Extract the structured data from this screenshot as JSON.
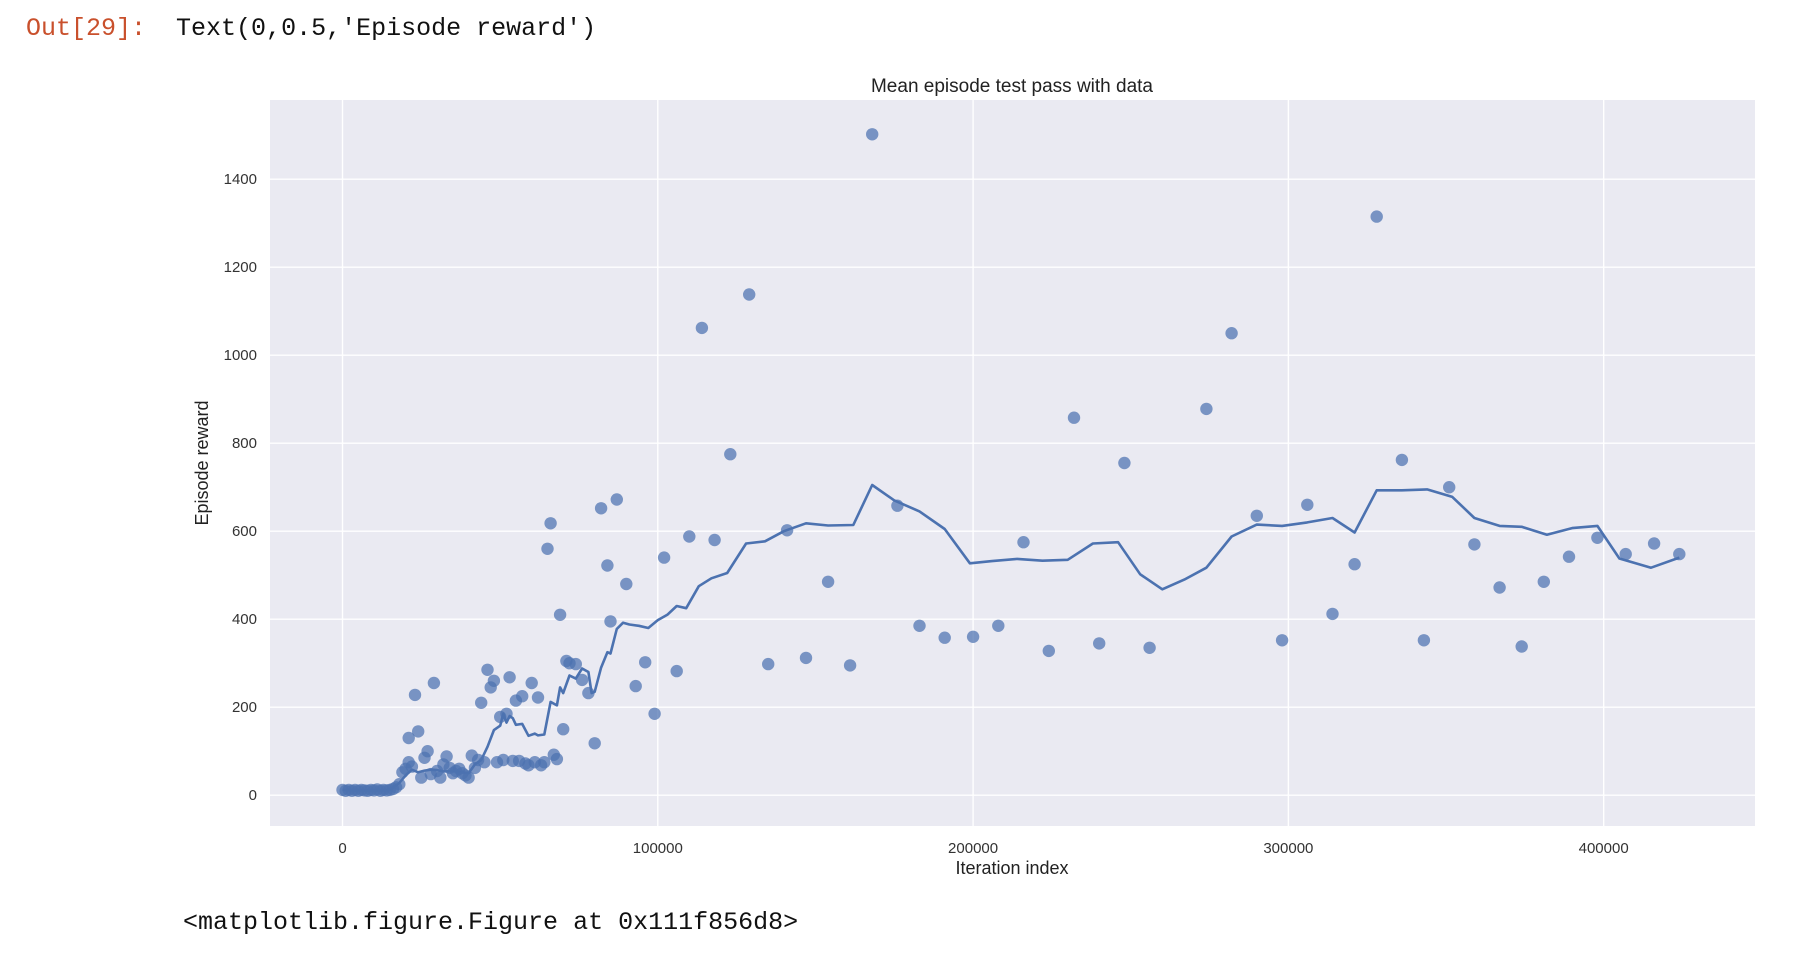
{
  "cell": {
    "prompt": "Out[29]:",
    "output_text": "Text(0,0.5,'Episode reward')",
    "figure_repr": "<matplotlib.figure.Figure at 0x111f856d8>"
  },
  "chart_data": {
    "type": "scatter",
    "title": "Mean episode test pass with data",
    "xlabel": "Iteration index",
    "ylabel": "Episode reward",
    "xlim": [
      -23000,
      448000
    ],
    "ylim": [
      -70,
      1580
    ],
    "xticks": [
      0,
      100000,
      200000,
      300000,
      400000
    ],
    "yticks": [
      0,
      200,
      400,
      600,
      800,
      1000,
      1200,
      1400
    ],
    "grid": true,
    "style": "seaborn-darkgrid",
    "colors": {
      "background": "#eaeaf2",
      "grid": "#ffffff",
      "series": "#4c72b0"
    },
    "series": [
      {
        "kind": "scatter",
        "points": [
          [
            0,
            12
          ],
          [
            1000,
            10
          ],
          [
            2000,
            12
          ],
          [
            3000,
            10
          ],
          [
            4000,
            12
          ],
          [
            5000,
            10
          ],
          [
            6000,
            12
          ],
          [
            7000,
            11
          ],
          [
            8000,
            10
          ],
          [
            9000,
            12
          ],
          [
            10000,
            11
          ],
          [
            11000,
            13
          ],
          [
            12000,
            10
          ],
          [
            13000,
            12
          ],
          [
            14000,
            11
          ],
          [
            15000,
            12
          ],
          [
            16000,
            14
          ],
          [
            17000,
            18
          ],
          [
            18000,
            25
          ],
          [
            19000,
            52
          ],
          [
            20000,
            60
          ],
          [
            21000,
            75
          ],
          [
            21000,
            130
          ],
          [
            22000,
            65
          ],
          [
            23000,
            228
          ],
          [
            24000,
            145
          ],
          [
            25000,
            40
          ],
          [
            26000,
            85
          ],
          [
            27000,
            100
          ],
          [
            28000,
            48
          ],
          [
            29000,
            255
          ],
          [
            30000,
            55
          ],
          [
            31000,
            40
          ],
          [
            32000,
            70
          ],
          [
            33000,
            88
          ],
          [
            34000,
            62
          ],
          [
            35000,
            50
          ],
          [
            36000,
            55
          ],
          [
            37000,
            60
          ],
          [
            38000,
            50
          ],
          [
            39000,
            45
          ],
          [
            40000,
            40
          ],
          [
            41000,
            90
          ],
          [
            42000,
            62
          ],
          [
            43000,
            80
          ],
          [
            44000,
            210
          ],
          [
            45000,
            75
          ],
          [
            46000,
            285
          ],
          [
            47000,
            245
          ],
          [
            48000,
            260
          ],
          [
            49000,
            75
          ],
          [
            50000,
            178
          ],
          [
            51000,
            80
          ],
          [
            52000,
            185
          ],
          [
            53000,
            268
          ],
          [
            54000,
            78
          ],
          [
            55000,
            215
          ],
          [
            56000,
            78
          ],
          [
            57000,
            225
          ],
          [
            58000,
            72
          ],
          [
            59000,
            68
          ],
          [
            60000,
            255
          ],
          [
            61000,
            75
          ],
          [
            62000,
            222
          ],
          [
            63000,
            68
          ],
          [
            64000,
            75
          ],
          [
            65000,
            560
          ],
          [
            66000,
            618
          ],
          [
            67000,
            92
          ],
          [
            68000,
            82
          ],
          [
            69000,
            410
          ],
          [
            70000,
            150
          ],
          [
            71000,
            305
          ],
          [
            72000,
            300
          ],
          [
            74000,
            298
          ],
          [
            76000,
            262
          ],
          [
            78000,
            232
          ],
          [
            80000,
            118
          ],
          [
            82000,
            652
          ],
          [
            84000,
            522
          ],
          [
            85000,
            395
          ],
          [
            87000,
            672
          ],
          [
            90000,
            480
          ],
          [
            93000,
            248
          ],
          [
            96000,
            302
          ],
          [
            99000,
            185
          ],
          [
            102000,
            540
          ],
          [
            106000,
            282
          ],
          [
            110000,
            588
          ],
          [
            114000,
            1062
          ],
          [
            118000,
            580
          ],
          [
            123000,
            775
          ],
          [
            129000,
            1138
          ],
          [
            135000,
            298
          ],
          [
            141000,
            602
          ],
          [
            147000,
            312
          ],
          [
            154000,
            485
          ],
          [
            161000,
            295
          ],
          [
            168000,
            1502
          ],
          [
            176000,
            658
          ],
          [
            183000,
            385
          ],
          [
            191000,
            358
          ],
          [
            200000,
            360
          ],
          [
            208000,
            385
          ],
          [
            216000,
            575
          ],
          [
            224000,
            328
          ],
          [
            232000,
            858
          ],
          [
            240000,
            345
          ],
          [
            248000,
            755
          ],
          [
            256000,
            335
          ],
          [
            274000,
            878
          ],
          [
            282000,
            1050
          ],
          [
            290000,
            635
          ],
          [
            298000,
            352
          ],
          [
            306000,
            660
          ],
          [
            314000,
            412
          ],
          [
            321000,
            525
          ],
          [
            328000,
            1315
          ],
          [
            336000,
            762
          ],
          [
            343000,
            352
          ],
          [
            351000,
            700
          ],
          [
            359000,
            570
          ],
          [
            367000,
            472
          ],
          [
            374000,
            338
          ],
          [
            381000,
            485
          ],
          [
            389000,
            542
          ],
          [
            398000,
            585
          ],
          [
            407000,
            548
          ],
          [
            416000,
            572
          ],
          [
            424000,
            548
          ]
        ]
      },
      {
        "kind": "line",
        "points": [
          [
            0,
            12
          ],
          [
            10000,
            11
          ],
          [
            15000,
            12
          ],
          [
            18000,
            28
          ],
          [
            20000,
            45
          ],
          [
            22000,
            58
          ],
          [
            24000,
            52
          ],
          [
            26000,
            56
          ],
          [
            28000,
            58
          ],
          [
            30000,
            57
          ],
          [
            32000,
            54
          ],
          [
            35000,
            55
          ],
          [
            38000,
            52
          ],
          [
            40000,
            50
          ],
          [
            42000,
            70
          ],
          [
            44000,
            80
          ],
          [
            46000,
            110
          ],
          [
            48000,
            148
          ],
          [
            50000,
            158
          ],
          [
            51000,
            185
          ],
          [
            52000,
            165
          ],
          [
            53000,
            180
          ],
          [
            54000,
            175
          ],
          [
            55000,
            160
          ],
          [
            57000,
            162
          ],
          [
            59000,
            135
          ],
          [
            61000,
            140
          ],
          [
            62000,
            136
          ],
          [
            64000,
            138
          ],
          [
            66000,
            212
          ],
          [
            68000,
            204
          ],
          [
            69000,
            245
          ],
          [
            70000,
            232
          ],
          [
            72000,
            272
          ],
          [
            74000,
            265
          ],
          [
            76000,
            288
          ],
          [
            78000,
            280
          ],
          [
            79000,
            232
          ],
          [
            80000,
            235
          ],
          [
            82000,
            290
          ],
          [
            84000,
            325
          ],
          [
            85000,
            322
          ],
          [
            87000,
            378
          ],
          [
            89000,
            392
          ],
          [
            91000,
            388
          ],
          [
            94000,
            385
          ],
          [
            97000,
            380
          ],
          [
            100000,
            398
          ],
          [
            103000,
            410
          ],
          [
            106000,
            430
          ],
          [
            109000,
            425
          ],
          [
            113000,
            475
          ],
          [
            117000,
            493
          ],
          [
            122000,
            505
          ],
          [
            128000,
            572
          ],
          [
            134000,
            577
          ],
          [
            140000,
            600
          ],
          [
            147000,
            618
          ],
          [
            154000,
            613
          ],
          [
            162000,
            614
          ],
          [
            168000,
            705
          ],
          [
            175000,
            670
          ],
          [
            183000,
            645
          ],
          [
            191000,
            605
          ],
          [
            199000,
            527
          ],
          [
            206000,
            532
          ],
          [
            214000,
            537
          ],
          [
            222000,
            533
          ],
          [
            230000,
            535
          ],
          [
            238000,
            572
          ],
          [
            246000,
            575
          ],
          [
            253000,
            502
          ],
          [
            260000,
            468
          ],
          [
            267000,
            490
          ],
          [
            274000,
            517
          ],
          [
            282000,
            588
          ],
          [
            290000,
            615
          ],
          [
            298000,
            612
          ],
          [
            306000,
            620
          ],
          [
            314000,
            630
          ],
          [
            321000,
            597
          ],
          [
            328000,
            693
          ],
          [
            336000,
            693
          ],
          [
            344000,
            695
          ],
          [
            352000,
            678
          ],
          [
            359000,
            630
          ],
          [
            367000,
            612
          ],
          [
            374000,
            610
          ],
          [
            382000,
            592
          ],
          [
            390000,
            607
          ],
          [
            398000,
            612
          ],
          [
            405000,
            538
          ],
          [
            415000,
            517
          ],
          [
            424000,
            540
          ]
        ]
      }
    ]
  }
}
